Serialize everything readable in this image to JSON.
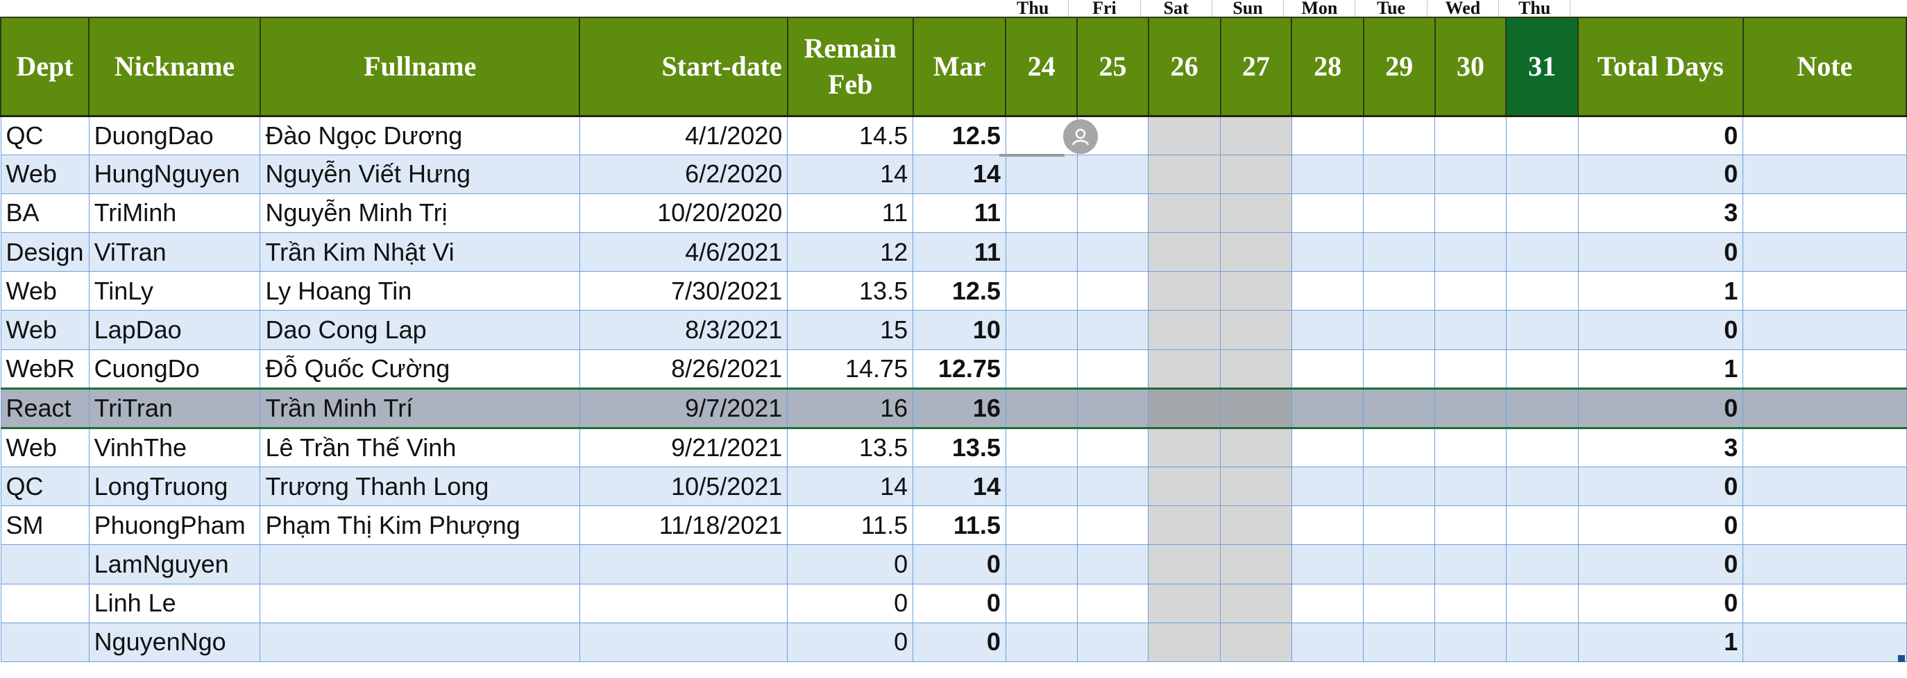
{
  "weekdays": [
    "Thu",
    "Fri",
    "Sat",
    "Sun",
    "Mon",
    "Tue",
    "Wed",
    "Thu"
  ],
  "headers": {
    "dept": "Dept",
    "nickname": "Nickname",
    "fullname": "Fullname",
    "start_date": "Start-date",
    "remain_feb_line1": "Remain",
    "remain_feb_line2": "Feb",
    "mar": "Mar",
    "days": [
      "24",
      "25",
      "26",
      "27",
      "28",
      "29",
      "30",
      "31"
    ],
    "total_days": "Total Days",
    "note": "Note"
  },
  "rows": [
    {
      "dept": "QC",
      "nickname": "DuongDao",
      "fullname": "Đào Ngọc Dương",
      "start": "4/1/2020",
      "feb": "14.5",
      "mar": "12.5",
      "total": "0"
    },
    {
      "dept": "Web",
      "nickname": "HungNguyen",
      "fullname": "Nguyễn Viết Hưng",
      "start": "6/2/2020",
      "feb": "14",
      "mar": "14",
      "total": "0"
    },
    {
      "dept": "BA",
      "nickname": "TriMinh",
      "fullname": "Nguyễn Minh Trị",
      "start": "10/20/2020",
      "feb": "11",
      "mar": "11",
      "total": "3"
    },
    {
      "dept": "Design",
      "nickname": "ViTran",
      "fullname": "Trần Kim Nhật Vi",
      "start": "4/6/2021",
      "feb": "12",
      "mar": "11",
      "total": "0"
    },
    {
      "dept": "Web",
      "nickname": "TinLy",
      "fullname": "Ly Hoang Tin",
      "start": "7/30/2021",
      "feb": "13.5",
      "mar": "12.5",
      "total": "1"
    },
    {
      "dept": "Web",
      "nickname": "LapDao",
      "fullname": "Dao Cong Lap",
      "start": "8/3/2021",
      "feb": "15",
      "mar": "10",
      "total": "0"
    },
    {
      "dept": "WebR",
      "nickname": "CuongDo",
      "fullname": "Đỗ Quốc Cường",
      "start": "8/26/2021",
      "feb": "14.75",
      "mar": "12.75",
      "total": "1"
    },
    {
      "dept": "React",
      "nickname": "TriTran",
      "fullname": "Trần Minh Trí",
      "start": "9/7/2021",
      "feb": "16",
      "mar": "16",
      "total": "0"
    },
    {
      "dept": "Web",
      "nickname": "VinhThe",
      "fullname": "Lê Trần Thế Vinh",
      "start": "9/21/2021",
      "feb": "13.5",
      "mar": "13.5",
      "total": "3"
    },
    {
      "dept": "QC",
      "nickname": "LongTruong",
      "fullname": "Trương Thanh Long",
      "start": "10/5/2021",
      "feb": "14",
      "mar": "14",
      "total": "0"
    },
    {
      "dept": "SM",
      "nickname": "PhuongPham",
      "fullname": "Phạm Thị Kim Phượng",
      "start": "11/18/2021",
      "feb": "11.5",
      "mar": "11.5",
      "total": "0"
    },
    {
      "dept": "",
      "nickname": "LamNguyen",
      "fullname": "",
      "start": "",
      "feb": "0",
      "mar": "0",
      "total": "0"
    },
    {
      "dept": "",
      "nickname": "Linh Le",
      "fullname": "",
      "start": "",
      "feb": "0",
      "mar": "0",
      "total": "0"
    },
    {
      "dept": "",
      "nickname": "NguyenNgo",
      "fullname": "",
      "start": "",
      "feb": "0",
      "mar": "0",
      "total": "1"
    }
  ],
  "selected_row": 7,
  "today_column": "31",
  "colors": {
    "header_green": "#5e8c0f",
    "today_green": "#0f6b2a",
    "band_blue": "#dde9f7",
    "weekend_gray": "#d6d6d6",
    "grid_blue": "#6fa0d8"
  },
  "icons": {
    "presence": "user-avatar-icon"
  }
}
